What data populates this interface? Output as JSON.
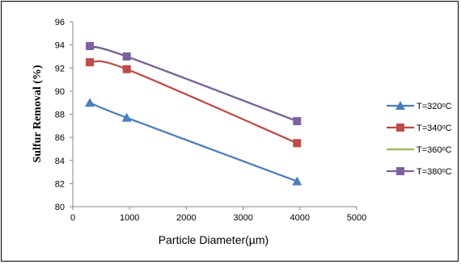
{
  "chart_data": {
    "type": "line",
    "xlabel": "Particle Diameter(µm)",
    "ylabel": "Sulfur  Removal (%)",
    "xlim": [
      0,
      5000
    ],
    "ylim": [
      80,
      96
    ],
    "x_ticks": [
      "0",
      "1000",
      "2000",
      "3000",
      "4000",
      "5000"
    ],
    "y_ticks": [
      "80",
      "82",
      "84",
      "86",
      "88",
      "90",
      "92",
      "94",
      "96"
    ],
    "x": [
      300,
      950,
      3950
    ],
    "series": [
      {
        "name": "T=320ᵒC",
        "values": [
          89.0,
          87.7,
          82.2
        ],
        "color": "#4a7ebb",
        "marker": "triangle"
      },
      {
        "name": "T=340ᵒC",
        "values": [
          92.5,
          91.9,
          85.5
        ],
        "color": "#be4b48",
        "marker": "square"
      },
      {
        "name": "T=360ᵒC",
        "values": [
          93.8,
          93.0,
          87.4
        ],
        "color": "#98b954",
        "marker": "none"
      },
      {
        "name": "T=380ᵒC",
        "values": [
          93.9,
          93.0,
          87.4
        ],
        "color": "#7d60a0",
        "marker": "square"
      }
    ],
    "grid": false,
    "legend_position": "right"
  }
}
